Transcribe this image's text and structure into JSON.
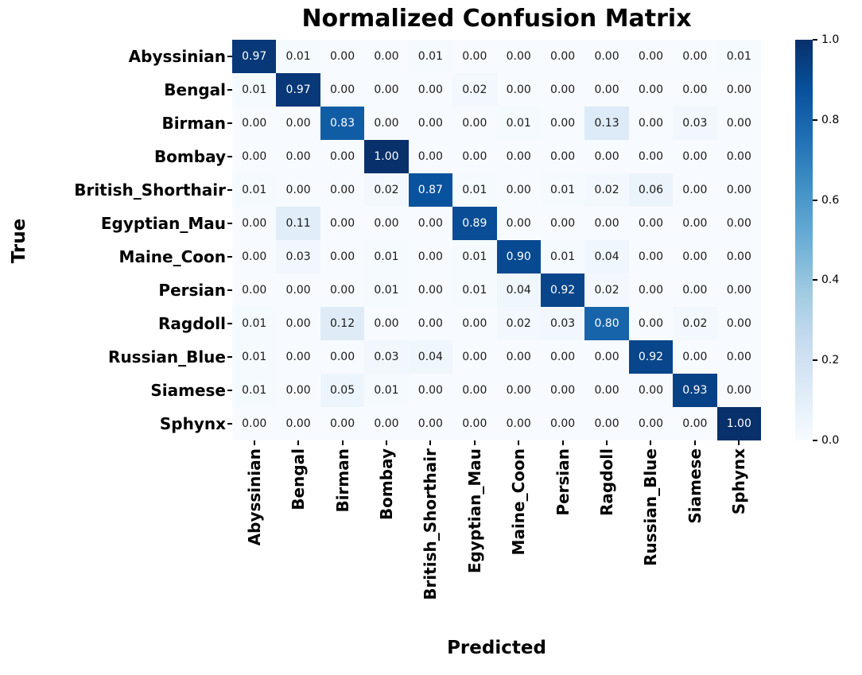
{
  "chart_data": {
    "type": "heatmap",
    "title": "Normalized Confusion Matrix",
    "xlabel": "Predicted",
    "ylabel": "True",
    "categories": [
      "Abyssinian",
      "Bengal",
      "Birman",
      "Bombay",
      "British_Shorthair",
      "Egyptian_Mau",
      "Maine_Coon",
      "Persian",
      "Ragdoll",
      "Russian_Blue",
      "Siamese",
      "Sphynx"
    ],
    "matrix": [
      [
        0.97,
        0.01,
        0.0,
        0.0,
        0.01,
        0.0,
        0.0,
        0.0,
        0.0,
        0.0,
        0.0,
        0.01
      ],
      [
        0.01,
        0.97,
        0.0,
        0.0,
        0.0,
        0.02,
        0.0,
        0.0,
        0.0,
        0.0,
        0.0,
        0.0
      ],
      [
        0.0,
        0.0,
        0.83,
        0.0,
        0.0,
        0.0,
        0.01,
        0.0,
        0.13,
        0.0,
        0.03,
        0.0
      ],
      [
        0.0,
        0.0,
        0.0,
        1.0,
        0.0,
        0.0,
        0.0,
        0.0,
        0.0,
        0.0,
        0.0,
        0.0
      ],
      [
        0.01,
        0.0,
        0.0,
        0.02,
        0.87,
        0.01,
        0.0,
        0.01,
        0.02,
        0.06,
        0.0,
        0.0
      ],
      [
        0.0,
        0.11,
        0.0,
        0.0,
        0.0,
        0.89,
        0.0,
        0.0,
        0.0,
        0.0,
        0.0,
        0.0
      ],
      [
        0.0,
        0.03,
        0.0,
        0.01,
        0.0,
        0.01,
        0.9,
        0.01,
        0.04,
        0.0,
        0.0,
        0.0
      ],
      [
        0.0,
        0.0,
        0.0,
        0.01,
        0.0,
        0.01,
        0.04,
        0.92,
        0.02,
        0.0,
        0.0,
        0.0
      ],
      [
        0.01,
        0.0,
        0.12,
        0.0,
        0.0,
        0.0,
        0.02,
        0.03,
        0.8,
        0.0,
        0.02,
        0.0
      ],
      [
        0.01,
        0.0,
        0.0,
        0.03,
        0.04,
        0.0,
        0.0,
        0.0,
        0.0,
        0.92,
        0.0,
        0.0
      ],
      [
        0.01,
        0.0,
        0.05,
        0.01,
        0.0,
        0.0,
        0.0,
        0.0,
        0.0,
        0.0,
        0.93,
        0.0
      ],
      [
        0.0,
        0.0,
        0.0,
        0.0,
        0.0,
        0.0,
        0.0,
        0.0,
        0.0,
        0.0,
        0.0,
        1.0
      ]
    ],
    "value_decimals": 2,
    "colormap": {
      "name": "Blues",
      "stops": [
        "#f7fbff",
        "#deebf7",
        "#c6dbef",
        "#9ecae1",
        "#6baed6",
        "#4292c6",
        "#2171b5",
        "#08519c",
        "#08306b"
      ]
    },
    "cell_text_color_dark": "#1a1a1a",
    "cell_text_color_light": "#ffffff",
    "text_color_threshold": 0.5,
    "colorbar": {
      "min": 0.0,
      "max": 1.0,
      "ticks": [
        "1.0",
        "0.8",
        "0.6",
        "0.4",
        "0.2",
        "0.0"
      ],
      "tick_values": [
        1.0,
        0.8,
        0.6,
        0.4,
        0.2,
        0.0
      ],
      "position": "right"
    },
    "grid": false,
    "axis_tick_color": "#000000"
  }
}
